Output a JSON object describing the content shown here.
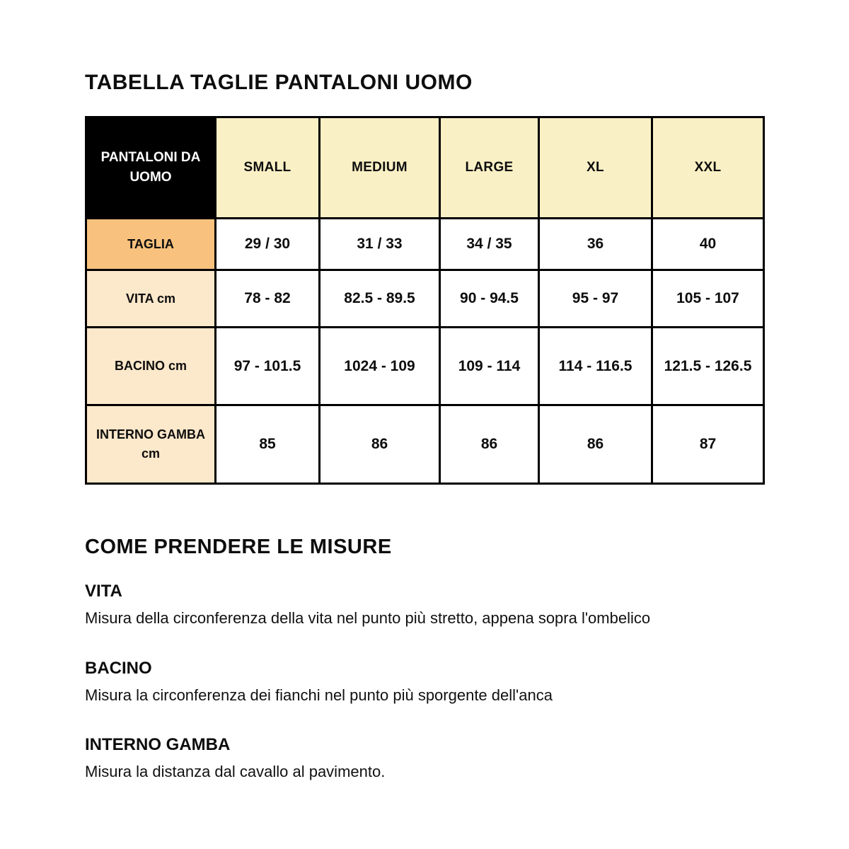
{
  "page": {
    "title": "TABELLA TAGLIE PANTALONI UOMO"
  },
  "table": {
    "corner_label": "PANTALONI DA UOMO",
    "size_headers": [
      "SMALL",
      "MEDIUM",
      "LARGE",
      "XL",
      "XXL"
    ],
    "rows": [
      {
        "label": "TAGLIA",
        "values": [
          "29 / 30",
          "31 / 33",
          "34 / 35",
          "36",
          "40"
        ]
      },
      {
        "label": "VITA cm",
        "values": [
          "78 - 82",
          "82.5 - 89.5",
          "90 - 94.5",
          "95 - 97",
          "105 - 107"
        ]
      },
      {
        "label": "BACINO cm",
        "values": [
          "97 - 101.5",
          "1024 - 109",
          "109 - 114",
          "114 - 116.5",
          "121.5 - 126.5"
        ]
      },
      {
        "label": "INTERNO GAMBA cm",
        "values": [
          "85",
          "86",
          "86",
          "86",
          "87"
        ]
      }
    ]
  },
  "instructions": {
    "heading": "COME PRENDERE LE MISURE",
    "sections": [
      {
        "title": "VITA",
        "text": "Misura della circonferenza della vita nel punto più stretto, appena sopra l'ombelico"
      },
      {
        "title": "BACINO",
        "text": "Misura la circonferenza dei fianchi nel punto più sporgente dell'anca"
      },
      {
        "title": "INTERNO GAMBA",
        "text": "Misura la distanza dal cavallo al pavimento."
      }
    ]
  },
  "colors": {
    "header_black": "#000000",
    "header_yellow": "#FAF0C5",
    "row_label_orange": "#F8C27E",
    "row_label_peach": "#FCE8CA",
    "border": "#000000"
  }
}
